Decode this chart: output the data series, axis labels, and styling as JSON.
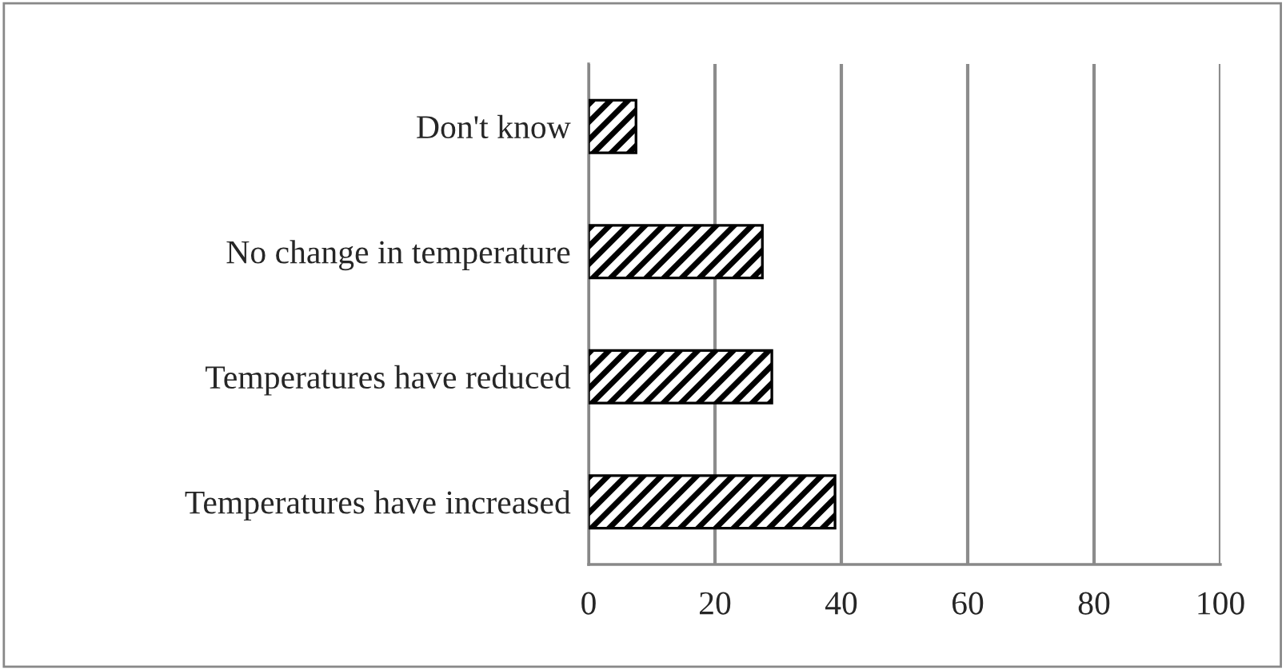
{
  "chart_data": {
    "type": "bar",
    "orientation": "horizontal",
    "categories": [
      "Don't know",
      "No change in temperature",
      "Temperatures have reduced",
      "Temperatures have increased"
    ],
    "values": [
      7.5,
      27.5,
      29,
      39
    ],
    "color": "#000000",
    "xlim": [
      0,
      100
    ],
    "xticks": [
      0,
      20,
      40,
      60,
      80,
      100
    ],
    "grid": "x"
  }
}
